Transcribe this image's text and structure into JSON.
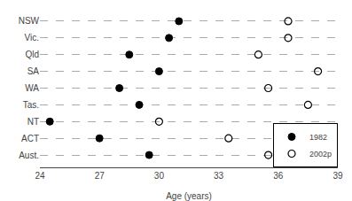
{
  "chart_data": {
    "type": "dot",
    "categories": [
      "NSW",
      "Vic.",
      "Qld",
      "SA",
      "WA",
      "Tas.",
      "NT",
      "ACT",
      "Aust."
    ],
    "series": [
      {
        "name": "1982",
        "color": "#000000",
        "marker": "filled",
        "values": [
          31.0,
          30.5,
          28.5,
          30.0,
          28.0,
          29.0,
          24.5,
          27.0,
          29.5
        ]
      },
      {
        "name": "2002p",
        "color": "#000000",
        "marker": "open",
        "values": [
          36.5,
          36.5,
          35.0,
          38.0,
          35.5,
          37.5,
          30.0,
          33.5,
          35.5
        ]
      }
    ],
    "xlabel": "Age (years)",
    "xlim": [
      24,
      39
    ],
    "xticks": [
      24,
      27,
      30,
      33,
      36,
      39
    ],
    "grid": "y",
    "legend": "lower right"
  }
}
